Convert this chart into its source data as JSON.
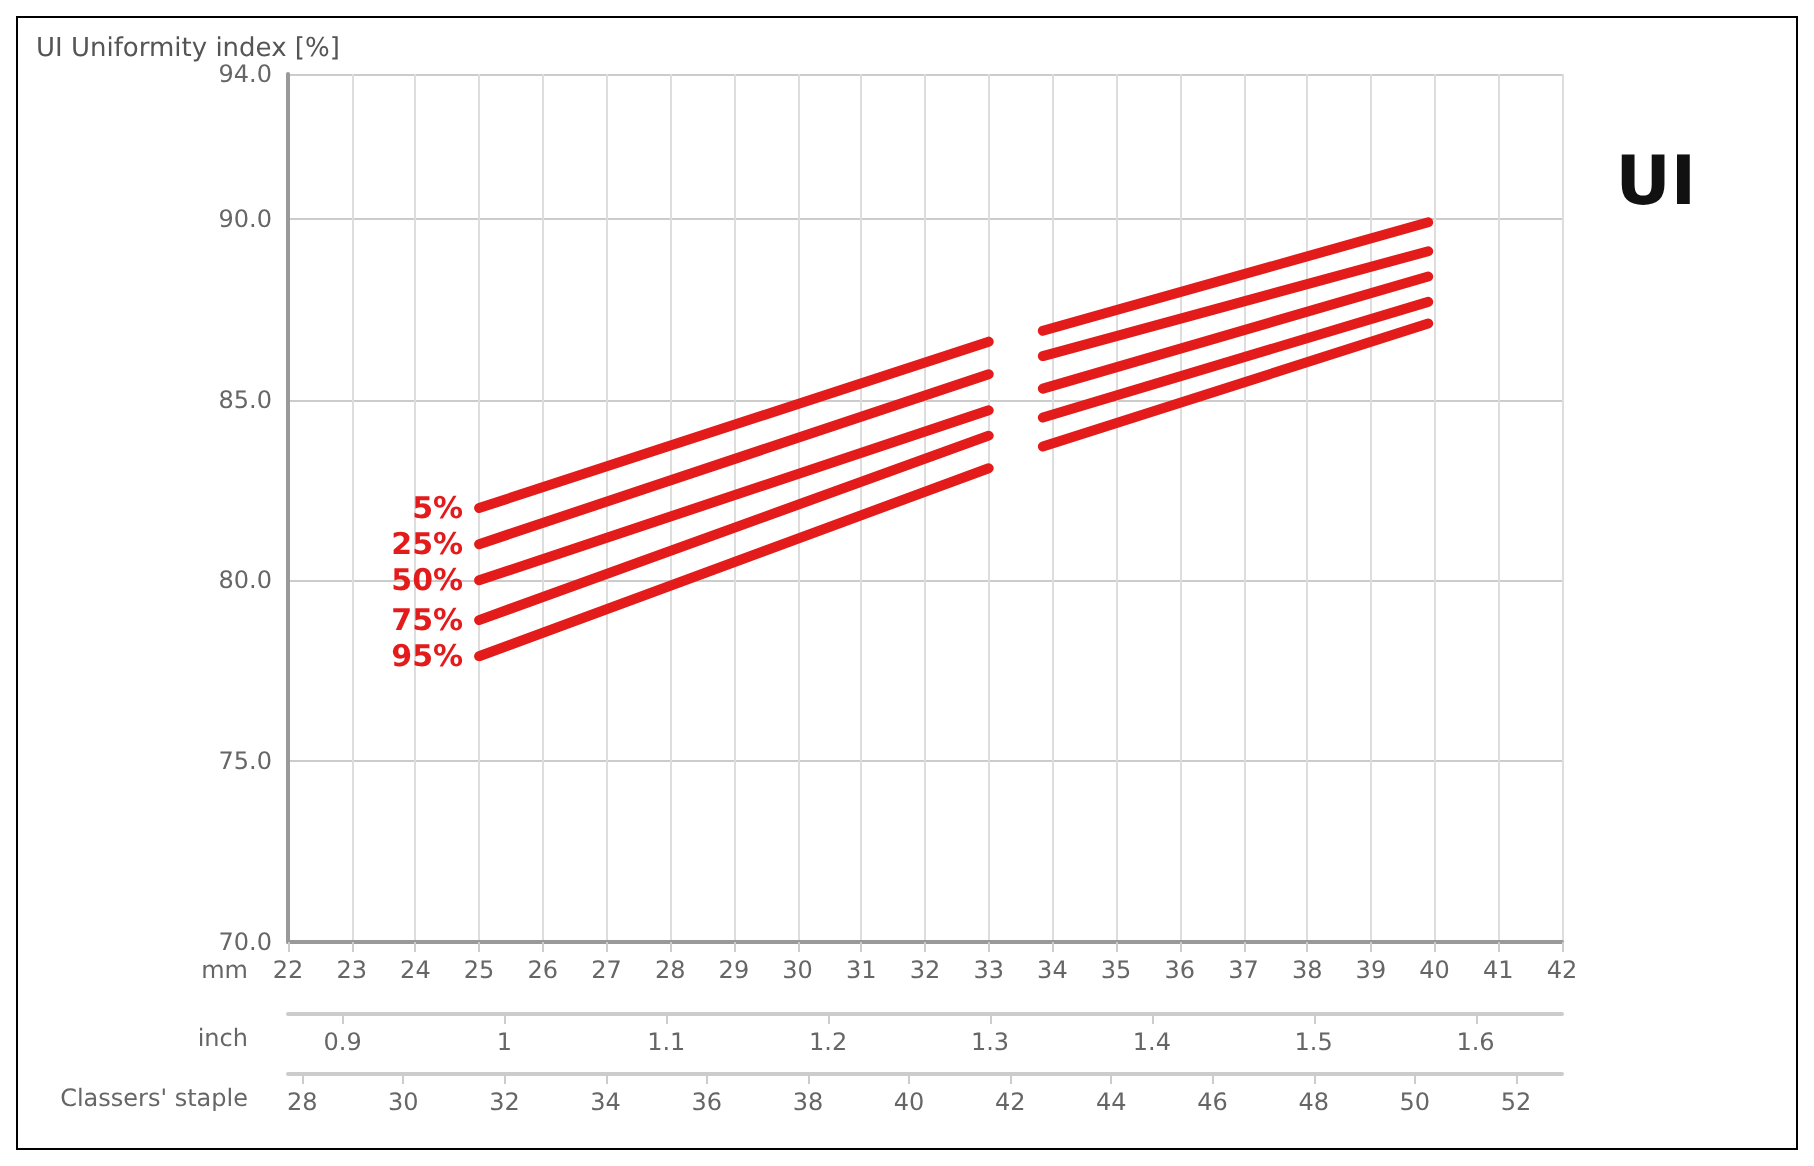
{
  "chart_data": {
    "type": "line",
    "title": "UI Uniformity index [%]",
    "annotations": [
      "UI",
      "inch",
      "0.9",
      "1",
      "1.1",
      "1.2",
      "1.3",
      "1.4",
      "1.5",
      "1.6"
    ],
    "xlabel": "mm",
    "x2label": "Classers' staple",
    "xlim": [
      22,
      42
    ],
    "xticks": [
      22,
      23,
      24,
      25,
      26,
      27,
      28,
      29,
      30,
      31,
      32,
      33,
      34,
      35,
      36,
      37,
      38,
      39,
      40,
      41,
      42
    ],
    "x2lim": [
      27.72,
      52.91
    ],
    "x2ticks": [
      28,
      30,
      32,
      34,
      36,
      38,
      40,
      42,
      44,
      46,
      48,
      50,
      52
    ],
    "ylim": [
      70,
      94
    ],
    "yticks": [
      {
        "value": 70,
        "label": "70.0"
      },
      {
        "value": 75,
        "label": "75.0"
      },
      {
        "value": 80,
        "label": "80.0"
      },
      {
        "value": 85,
        "label": "85.0"
      },
      {
        "value": 90,
        "label": "90.0"
      },
      {
        "value": 94,
        "label": "94.0"
      }
    ],
    "grid": true,
    "legend": false,
    "marker": "none",
    "line_style": "solid",
    "x": [
      25,
      33,
      33.4,
      33.85,
      39.9
    ],
    "series": [
      {
        "name": "5%",
        "color": "#e31b1b",
        "values": [
          82.0,
          86.6,
          null,
          86.9,
          89.9
        ]
      },
      {
        "name": "25%",
        "color": "#e31b1b",
        "values": [
          81.0,
          85.7,
          null,
          86.2,
          89.1
        ]
      },
      {
        "name": "50%",
        "color": "#e31b1b",
        "values": [
          80.0,
          84.7,
          null,
          85.3,
          88.4
        ]
      },
      {
        "name": "75%",
        "color": "#e31b1b",
        "values": [
          78.9,
          84.0,
          null,
          84.5,
          87.7
        ]
      },
      {
        "name": "95%",
        "color": "#e31b1b",
        "values": [
          77.9,
          83.1,
          null,
          83.7,
          87.1
        ]
      }
    ]
  }
}
